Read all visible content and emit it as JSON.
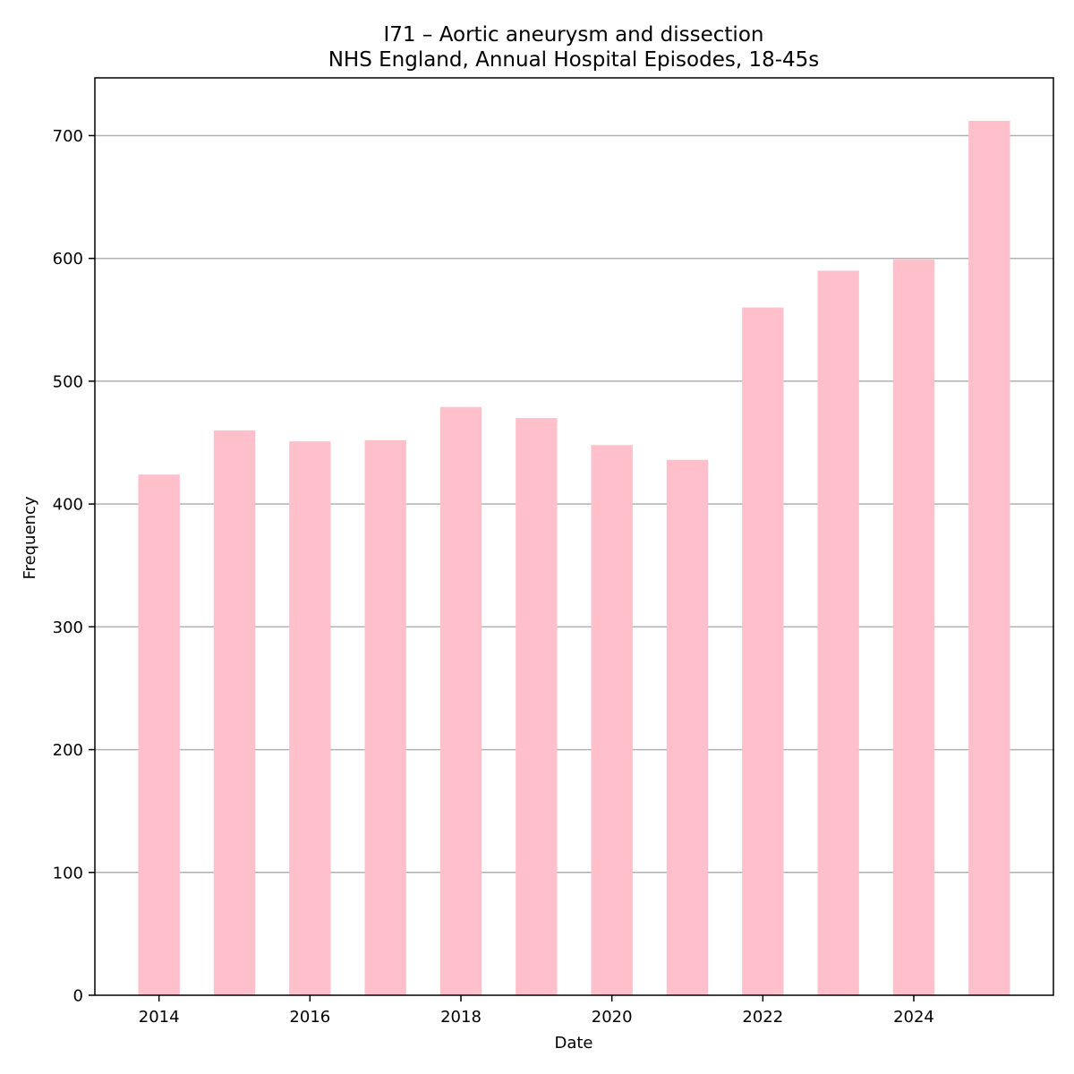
{
  "chart_data": {
    "type": "bar",
    "title": "I71 – Aortic aneurysm and dissection",
    "subtitle": "NHS England, Annual Hospital Episodes, 18-45s",
    "xlabel": "Date",
    "ylabel": "Frequency",
    "x": [
      2014,
      2015,
      2016,
      2017,
      2018,
      2019,
      2020,
      2021,
      2022,
      2023,
      2024,
      2025
    ],
    "values": [
      424,
      460,
      451,
      452,
      479,
      470,
      448,
      436,
      560,
      590,
      599,
      712
    ],
    "xticks": [
      "2014",
      "2016",
      "2018",
      "2020",
      "2022",
      "2024"
    ],
    "yticks": [
      "0",
      "100",
      "200",
      "300",
      "400",
      "500",
      "600",
      "700"
    ],
    "xlim": [
      2013.15,
      2025.85
    ],
    "ylim": [
      0,
      747
    ],
    "grid": "y",
    "bar_color": "#ffc0cb",
    "grid_color": "#b0b0b0"
  }
}
